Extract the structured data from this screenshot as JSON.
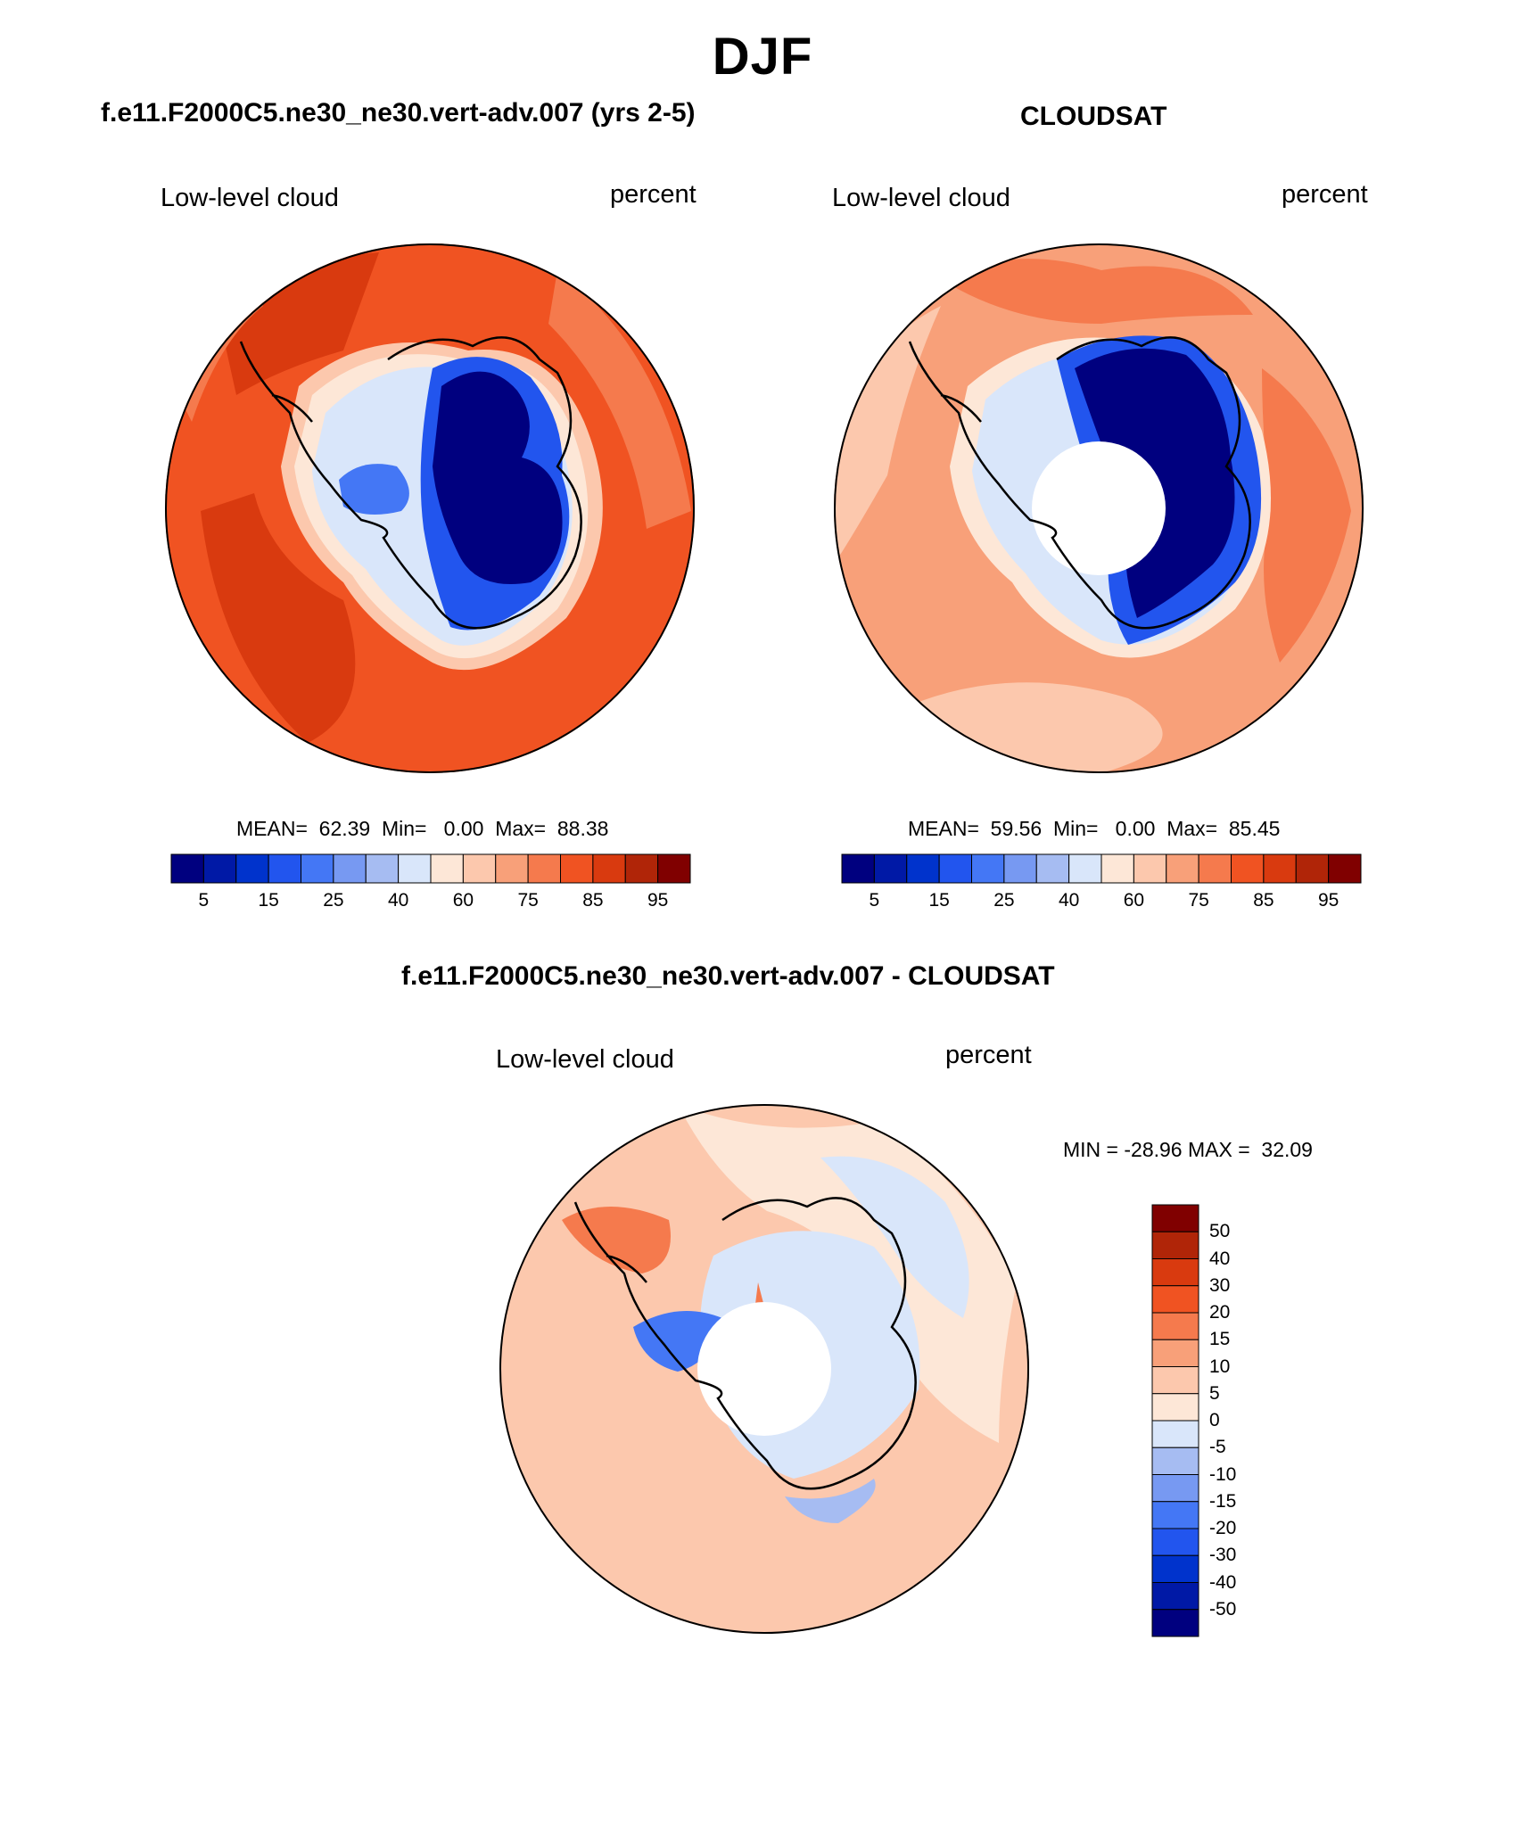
{
  "page": {
    "title": "DJF",
    "model_title": "f.e11.F2000C5.ne30_ne30.vert-adv.007 (yrs 2-5)",
    "obs_title": "CLOUDSAT",
    "diff_title": "f.e11.F2000C5.ne30_ne30.vert-adv.007 - CLOUDSAT"
  },
  "panels": {
    "model": {
      "left_label": "Low-level cloud",
      "right_label": "percent",
      "stats": "MEAN=  62.39  Min=   0.00  Max=  88.38"
    },
    "obs": {
      "left_label": "Low-level cloud",
      "right_label": "percent",
      "stats": "MEAN=  59.56  Min=   0.00  Max=  85.45"
    },
    "diff": {
      "left_label": "Low-level cloud",
      "right_label": "percent",
      "stats": "MIN = -28.96 MAX =  32.09"
    }
  },
  "colorbars": {
    "field": {
      "colors": [
        "#00007f",
        "#0019a6",
        "#0033cc",
        "#2255ee",
        "#4477f5",
        "#7799f2",
        "#a6bcf2",
        "#d9e6fa",
        "#fde7d7",
        "#fcc8ad",
        "#f8a079",
        "#f57a4d",
        "#f05322",
        "#d93a0f",
        "#b02508",
        "#800000"
      ],
      "tick_labels": [
        "5",
        "15",
        "25",
        "40",
        "60",
        "75",
        "85",
        "95"
      ]
    },
    "diff": {
      "colors_top_to_bottom": [
        "#800000",
        "#b02508",
        "#d93a0f",
        "#f05322",
        "#f57a4d",
        "#f8a079",
        "#fcc8ad",
        "#fde7d7",
        "#d9e6fa",
        "#a6bcf2",
        "#7799f2",
        "#4477f5",
        "#2255ee",
        "#0033cc",
        "#0019a6",
        "#00007f"
      ],
      "tick_labels": [
        "50",
        "40",
        "30",
        "20",
        "15",
        "10",
        "5",
        "0",
        "-5",
        "-10",
        "-15",
        "-20",
        "-30",
        "-40",
        "-50"
      ]
    }
  },
  "map_colors": {
    "ocean_model": "#f05322",
    "ocean_model_dark": "#d93a0f",
    "ocean_obs": "#f8a079",
    "ocean_obs_light": "#fcc8ad",
    "ice_core": "#00007f",
    "ice_mid": "#2255ee",
    "ice_edge": "#d9e6fa",
    "diff_base": "#fcc8ad",
    "diff_light": "#fde7d7",
    "diff_neg": "#a6bcf2",
    "diff_pos": "#f57a4d",
    "missing": "#ffffff",
    "coast": "#000000"
  }
}
